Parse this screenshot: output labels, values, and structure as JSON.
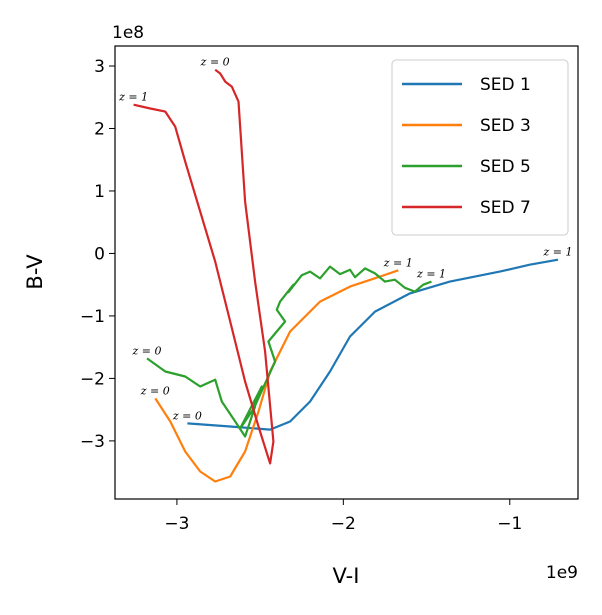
{
  "chart_data": {
    "type": "line",
    "x_label": "V-I",
    "y_label": "B-V",
    "x_offset_text": "1e9",
    "y_offset_text": "1e8",
    "xlim": [
      -3.372,
      -0.59
    ],
    "ylim": [
      -3.93,
      3.32
    ],
    "xticks": [
      {
        "value": -3,
        "label": "−3"
      },
      {
        "value": -2,
        "label": "−2"
      },
      {
        "value": -1,
        "label": "−1"
      }
    ],
    "yticks": [
      {
        "value": -3,
        "label": "−3"
      },
      {
        "value": -2,
        "label": "−2"
      },
      {
        "value": -1,
        "label": "−1"
      },
      0,
      1,
      2,
      3
    ],
    "legend": "upper right",
    "series": [
      {
        "name": "SED 1",
        "color": "#1f77b4",
        "start_label": "z = 0",
        "end_label": "z = 1",
        "x": [
          -2.937,
          -2.68,
          -2.44,
          -2.32,
          -2.2,
          -2.08,
          -1.96,
          -1.81,
          -1.6,
          -1.36,
          -1.06,
          -0.88,
          -0.71
        ],
        "values": [
          -2.72,
          -2.77,
          -2.82,
          -2.69,
          -2.37,
          -1.89,
          -1.33,
          -0.93,
          -0.64,
          -0.45,
          -0.29,
          -0.18,
          -0.1
        ]
      },
      {
        "name": "SED 3",
        "color": "#ff7f0e",
        "start_label": "z = 0",
        "end_label": "z = 1",
        "x": [
          -3.13,
          -3.04,
          -2.95,
          -2.86,
          -2.77,
          -2.68,
          -2.59,
          -2.51,
          -2.44,
          -2.32,
          -2.14,
          -1.96,
          -1.78,
          -1.67
        ],
        "values": [
          -2.32,
          -2.69,
          -3.17,
          -3.49,
          -3.65,
          -3.57,
          -3.17,
          -2.53,
          -1.89,
          -1.25,
          -0.77,
          -0.53,
          -0.37,
          -0.27
        ]
      },
      {
        "name": "SED 5",
        "color": "#2ca02c",
        "start_label": "z = 0",
        "end_label": "z = 1",
        "x": [
          -3.18,
          -3.07,
          -2.95,
          -2.86,
          -2.77,
          -2.73,
          -2.65,
          -2.59,
          -2.53,
          -2.62,
          -2.49,
          -2.55,
          -2.41,
          -2.45,
          -2.35,
          -2.4,
          -2.38,
          -2.3,
          -2.33,
          -2.25,
          -2.2,
          -2.14,
          -2.08,
          -2.02,
          -1.96,
          -1.93,
          -1.87,
          -1.81,
          -1.75,
          -1.69,
          -1.63,
          -1.57,
          -1.52,
          -1.47
        ],
        "values": [
          -1.68,
          -1.89,
          -1.97,
          -2.13,
          -2.02,
          -2.37,
          -2.69,
          -2.93,
          -2.45,
          -2.8,
          -2.13,
          -2.55,
          -1.73,
          -1.41,
          -1.09,
          -0.9,
          -0.77,
          -0.5,
          -0.62,
          -0.35,
          -0.29,
          -0.4,
          -0.21,
          -0.33,
          -0.26,
          -0.38,
          -0.24,
          -0.32,
          -0.45,
          -0.42,
          -0.55,
          -0.61,
          -0.5,
          -0.45
        ]
      },
      {
        "name": "SED 7",
        "color": "#d62728",
        "start_label": "z = 1",
        "end_label": "z = 0",
        "x": [
          -3.26,
          -3.16,
          -3.07,
          -3.01,
          -2.95,
          -2.86,
          -2.77,
          -2.68,
          -2.59,
          -2.51,
          -2.44,
          -2.42,
          -2.47,
          -2.53,
          -2.59,
          -2.63,
          -2.67,
          -2.71,
          -2.74,
          -2.77
        ],
        "values": [
          2.38,
          2.32,
          2.27,
          2.03,
          1.47,
          0.67,
          -0.13,
          -1.09,
          -2.05,
          -2.77,
          -3.36,
          -3.01,
          -1.57,
          -0.45,
          0.83,
          2.43,
          2.67,
          2.75,
          2.88,
          2.94
        ]
      }
    ]
  }
}
